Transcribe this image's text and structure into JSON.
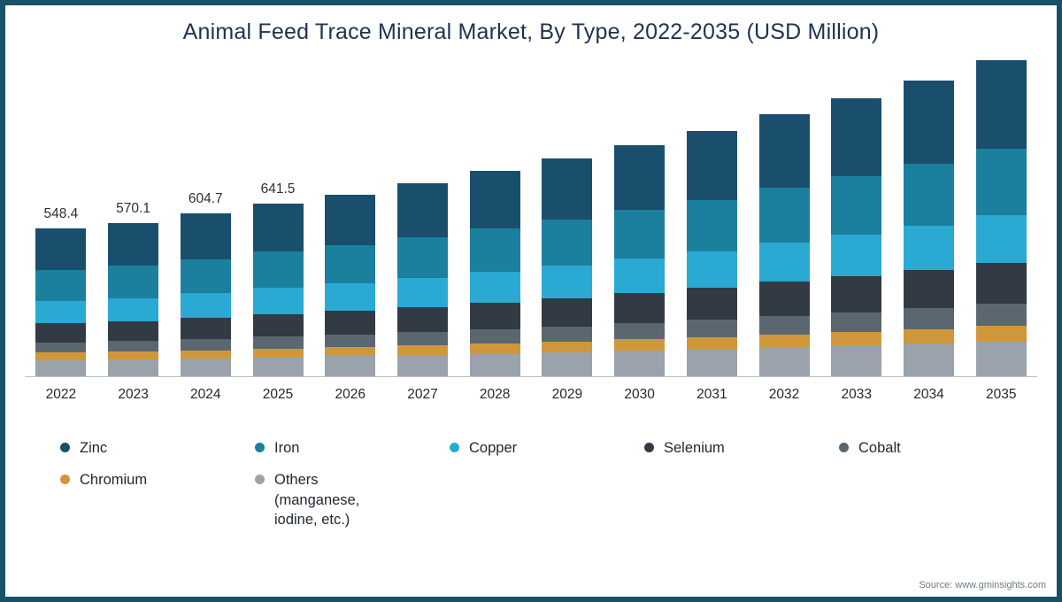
{
  "source": "Source: www.gminsights.com",
  "chart_data": {
    "type": "bar",
    "stacked": true,
    "title": "Animal Feed Trace Mineral Market, By Type, 2022-2035 (USD Million)",
    "xlabel": "",
    "ylabel": "",
    "ylim": [
      0,
      1200
    ],
    "grid": false,
    "legend_position": "bottom",
    "categories": [
      "2022",
      "2023",
      "2024",
      "2025",
      "2026",
      "2027",
      "2028",
      "2029",
      "2030",
      "2031",
      "2032",
      "2033",
      "2034",
      "2035"
    ],
    "totals": [
      548.4,
      570.1,
      604.7,
      641.5,
      675.4,
      716.7,
      762.5,
      808.2,
      857.5,
      909.5,
      974.6,
      1033.2,
      1098.5,
      1172.8
    ],
    "value_labels": [
      "548.4",
      "570.1",
      "604.7",
      "641.5",
      "",
      "",
      "",
      "",
      "",
      "",
      "",
      "",
      "",
      ""
    ],
    "series": [
      {
        "name": "Zinc",
        "legend_label": "Zinc",
        "color": "#1a4e6d",
        "values": [
          153.5,
          159.7,
          169.4,
          179.6,
          189.1,
          200.7,
          213.5,
          226.3,
          240.1,
          254.7,
          272.9,
          289.3,
          307.6,
          328.4
        ]
      },
      {
        "name": "Iron",
        "legend_label": "Iron",
        "color": "#1b7f9e",
        "values": [
          115.2,
          119.7,
          127.0,
          134.7,
          141.8,
          150.5,
          160.1,
          169.7,
          180.1,
          191.0,
          204.7,
          217.0,
          230.7,
          246.3
        ]
      },
      {
        "name": "Copper",
        "legend_label": "Copper",
        "color": "#2aa9d2",
        "values": [
          82.3,
          85.5,
          90.7,
          96.2,
          101.3,
          107.5,
          114.4,
          121.2,
          128.6,
          136.4,
          146.2,
          155.0,
          164.8,
          175.9
        ]
      },
      {
        "name": "Selenium",
        "legend_label": "Selenium",
        "color": "#323a44",
        "values": [
          71.3,
          74.1,
          78.6,
          83.4,
          87.8,
          93.2,
          99.1,
          105.1,
          111.5,
          118.2,
          126.7,
          134.3,
          142.8,
          152.5
        ]
      },
      {
        "name": "Cobalt",
        "legend_label": "Cobalt",
        "color": "#5b6770",
        "values": [
          38.4,
          39.9,
          42.3,
          44.9,
          47.3,
          50.2,
          53.4,
          56.6,
          60.0,
          63.7,
          68.2,
          72.3,
          76.9,
          82.1
        ]
      },
      {
        "name": "Chromium",
        "legend_label": "Chromium",
        "color": "#d0973a",
        "values": [
          27.4,
          28.5,
          30.2,
          32.1,
          33.8,
          35.8,
          38.1,
          40.4,
          42.9,
          45.5,
          48.7,
          51.7,
          54.9,
          58.6
        ]
      },
      {
        "name": "Others (manganese, iodine, etc.)",
        "legend_label": "Others\n(manganese,\niodine, etc.)",
        "color": "#9aa3ab",
        "values": [
          60.3,
          62.7,
          66.5,
          70.6,
          74.3,
          78.8,
          83.9,
          88.9,
          94.3,
          100.0,
          107.2,
          113.6,
          120.8,
          129.0
        ]
      }
    ]
  }
}
